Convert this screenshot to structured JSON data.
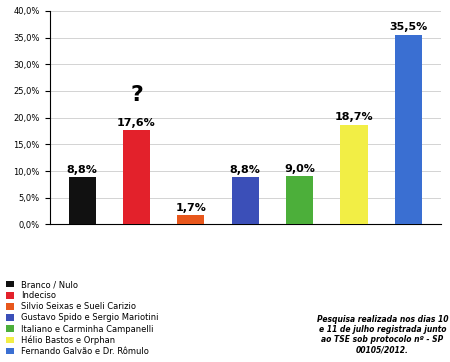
{
  "chart_data": {
    "type": "bar",
    "categories": [
      "Branco / Nulo",
      "Indeciso",
      "Silvio Seixas e Sueli Carizio",
      "Gustavo Spido e Sergio Mariotini",
      "Italiano e Carminha Campanelli",
      "Hélio Bastos e Orphan",
      "Fernando Galvão e Dr. Rômulo"
    ],
    "values": [
      8.8,
      17.6,
      1.7,
      8.8,
      9.0,
      18.7,
      35.5
    ],
    "value_labels": [
      "8,8%",
      "17,6%",
      "1,7%",
      "8,8%",
      "9,0%",
      "18,7%",
      "35,5%"
    ],
    "colors": [
      "#111111",
      "#e3212b",
      "#e8571c",
      "#3b4fb8",
      "#4caf3a",
      "#f2ee45",
      "#3a6fd2"
    ],
    "ylim": [
      0,
      40
    ],
    "yticks": [
      {
        "value": 0,
        "label": "0,0%"
      },
      {
        "value": 5,
        "label": "5,0%"
      },
      {
        "value": 10,
        "label": "10,0%"
      },
      {
        "value": 15,
        "label": "15,0%"
      },
      {
        "value": 20,
        "label": "20,0%"
      },
      {
        "value": 25,
        "label": "25,0%"
      },
      {
        "value": 30,
        "label": "30,0%"
      },
      {
        "value": 35,
        "label": "35,0%"
      },
      {
        "value": 40,
        "label": "40,0%"
      }
    ],
    "grid": true,
    "data_labels": true,
    "tick_labels": "y",
    "legend": "lower left",
    "annotations": [
      {
        "text": "?",
        "category": "Indeciso"
      }
    ],
    "note": "Pesquisa realizada nos dias 10 e 11 de julho registrada junto ao TSE sob protocolo nº - SP 00105/2012."
  }
}
